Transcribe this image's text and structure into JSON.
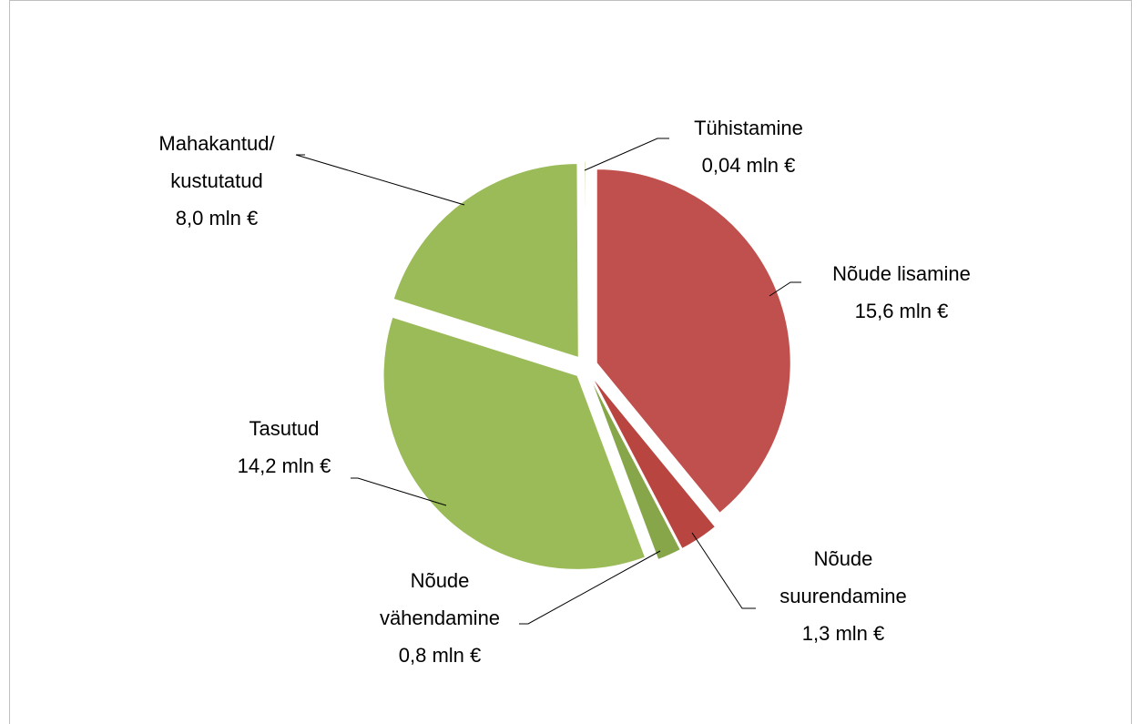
{
  "chart_data": {
    "type": "pie",
    "categories": [
      "Nõude lisamine",
      "Nõude suurendamine",
      "Nõude vähendamine",
      "Tasutud",
      "Mahakantud/ kustutatud",
      "Tühistamine"
    ],
    "values": [
      15.6,
      1.3,
      0.8,
      14.2,
      8.0,
      0.04
    ],
    "value_labels": [
      "15,6 mln €",
      "1,3 mln €",
      "0,8 mln €",
      "14,2 mln €",
      "8,0 mln €",
      "0,04 mln €"
    ],
    "colors": [
      "#c0504d",
      "#b8453f",
      "#86a649",
      "#9bbb59",
      "#9bbb59",
      "#9bbb59"
    ]
  }
}
